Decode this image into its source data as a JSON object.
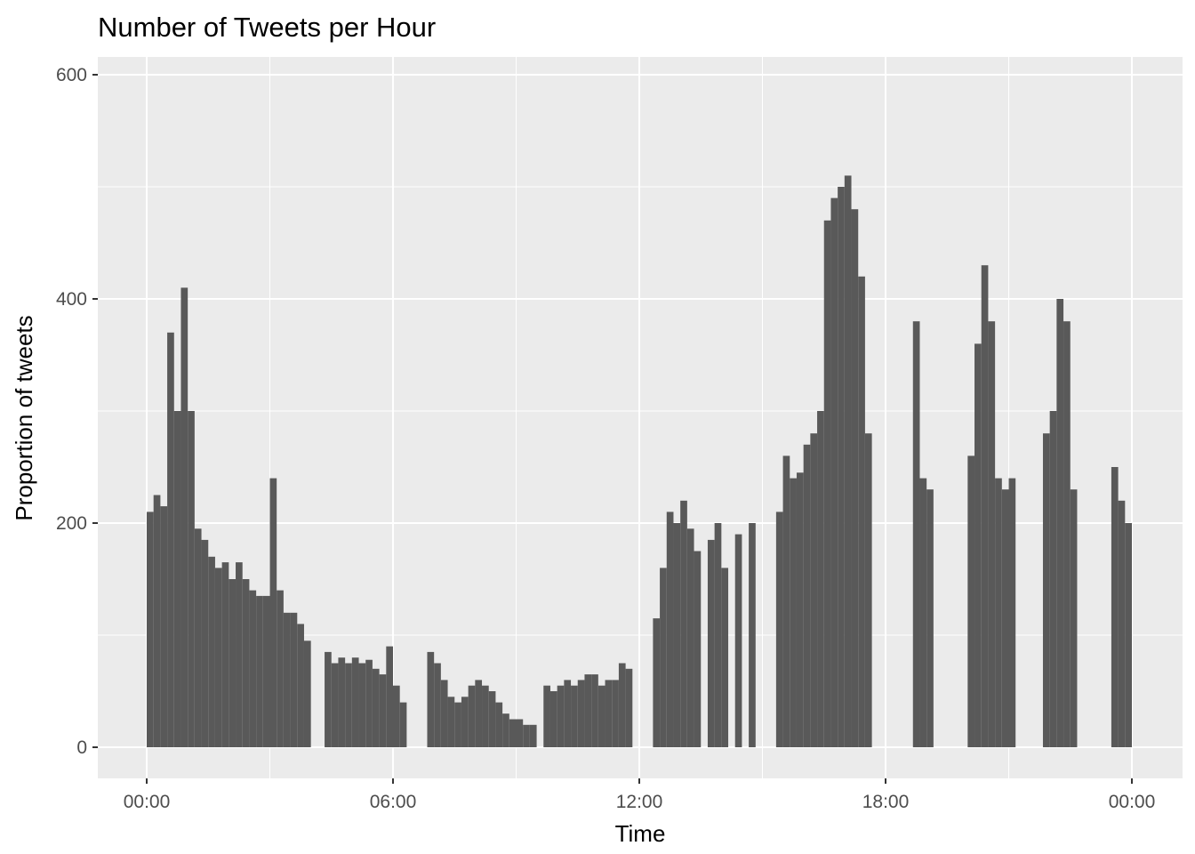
{
  "chart_data": {
    "type": "bar",
    "title": "Number of Tweets per Hour",
    "xlabel": "Time",
    "ylabel": "Proportion of tweets",
    "x_unit": "time of day",
    "xlim": [
      "2024-01-01 00:00",
      "2024-01-02 00:00"
    ],
    "ylim": [
      0,
      600
    ],
    "x_ticks": [
      {
        "value": "00:00",
        "hours": 0
      },
      {
        "value": "06:00",
        "hours": 6
      },
      {
        "value": "12:00",
        "hours": 12
      },
      {
        "value": "18:00",
        "hours": 18
      },
      {
        "value": "00:00",
        "hours": 24
      }
    ],
    "y_ticks": [
      0,
      200,
      400,
      600
    ],
    "grid": true,
    "bar_color": "#595959",
    "panel_color": "#ebebeb",
    "grid_color": "#ffffff",
    "series": [
      {
        "values": [
          {
            "x": "00:00",
            "y": 210
          },
          {
            "x": "00:10",
            "y": 225
          },
          {
            "x": "00:20",
            "y": 215
          },
          {
            "x": "00:30",
            "y": 370
          },
          {
            "x": "00:40",
            "y": 300
          },
          {
            "x": "00:50",
            "y": 410
          },
          {
            "x": "01:00",
            "y": 300
          },
          {
            "x": "01:10",
            "y": 195
          },
          {
            "x": "01:20",
            "y": 185
          },
          {
            "x": "01:30",
            "y": 170
          },
          {
            "x": "01:40",
            "y": 160
          },
          {
            "x": "01:50",
            "y": 165
          },
          {
            "x": "02:00",
            "y": 150
          },
          {
            "x": "02:10",
            "y": 165
          },
          {
            "x": "02:20",
            "y": 150
          },
          {
            "x": "02:30",
            "y": 140
          },
          {
            "x": "02:40",
            "y": 135
          },
          {
            "x": "02:50",
            "y": 135
          },
          {
            "x": "03:00",
            "y": 240
          },
          {
            "x": "03:10",
            "y": 140
          },
          {
            "x": "03:20",
            "y": 120
          },
          {
            "x": "03:30",
            "y": 120
          },
          {
            "x": "03:40",
            "y": 110
          },
          {
            "x": "03:50",
            "y": 95
          },
          {
            "x": "04:20",
            "y": 85
          },
          {
            "x": "04:30",
            "y": 75
          },
          {
            "x": "04:40",
            "y": 80
          },
          {
            "x": "04:50",
            "y": 75
          },
          {
            "x": "05:00",
            "y": 80
          },
          {
            "x": "05:10",
            "y": 75
          },
          {
            "x": "05:20",
            "y": 78
          },
          {
            "x": "05:30",
            "y": 70
          },
          {
            "x": "05:40",
            "y": 65
          },
          {
            "x": "05:50",
            "y": 90
          },
          {
            "x": "06:00",
            "y": 55
          },
          {
            "x": "06:10",
            "y": 40
          },
          {
            "x": "06:50",
            "y": 85
          },
          {
            "x": "07:00",
            "y": 75
          },
          {
            "x": "07:10",
            "y": 60
          },
          {
            "x": "07:20",
            "y": 45
          },
          {
            "x": "07:30",
            "y": 40
          },
          {
            "x": "07:40",
            "y": 45
          },
          {
            "x": "07:50",
            "y": 55
          },
          {
            "x": "08:00",
            "y": 60
          },
          {
            "x": "08:10",
            "y": 55
          },
          {
            "x": "08:20",
            "y": 50
          },
          {
            "x": "08:30",
            "y": 40
          },
          {
            "x": "08:40",
            "y": 30
          },
          {
            "x": "08:50",
            "y": 25
          },
          {
            "x": "09:00",
            "y": 25
          },
          {
            "x": "09:10",
            "y": 20
          },
          {
            "x": "09:20",
            "y": 20
          },
          {
            "x": "09:40",
            "y": 55
          },
          {
            "x": "09:50",
            "y": 50
          },
          {
            "x": "10:00",
            "y": 55
          },
          {
            "x": "10:10",
            "y": 60
          },
          {
            "x": "10:20",
            "y": 55
          },
          {
            "x": "10:30",
            "y": 60
          },
          {
            "x": "10:40",
            "y": 65
          },
          {
            "x": "10:50",
            "y": 65
          },
          {
            "x": "11:00",
            "y": 55
          },
          {
            "x": "11:10",
            "y": 60
          },
          {
            "x": "11:20",
            "y": 60
          },
          {
            "x": "11:30",
            "y": 75
          },
          {
            "x": "11:40",
            "y": 70
          },
          {
            "x": "12:20",
            "y": 115
          },
          {
            "x": "12:30",
            "y": 160
          },
          {
            "x": "12:40",
            "y": 210
          },
          {
            "x": "12:50",
            "y": 200
          },
          {
            "x": "13:00",
            "y": 220
          },
          {
            "x": "13:10",
            "y": 195
          },
          {
            "x": "13:20",
            "y": 175
          },
          {
            "x": "13:40",
            "y": 185
          },
          {
            "x": "13:50",
            "y": 200
          },
          {
            "x": "14:00",
            "y": 160
          },
          {
            "x": "14:20",
            "y": 190
          },
          {
            "x": "14:40",
            "y": 200
          },
          {
            "x": "15:20",
            "y": 210
          },
          {
            "x": "15:30",
            "y": 260
          },
          {
            "x": "15:40",
            "y": 240
          },
          {
            "x": "15:50",
            "y": 245
          },
          {
            "x": "16:00",
            "y": 270
          },
          {
            "x": "16:10",
            "y": 280
          },
          {
            "x": "16:20",
            "y": 300
          },
          {
            "x": "16:30",
            "y": 470
          },
          {
            "x": "16:40",
            "y": 490
          },
          {
            "x": "16:50",
            "y": 500
          },
          {
            "x": "17:00",
            "y": 510
          },
          {
            "x": "17:10",
            "y": 480
          },
          {
            "x": "17:20",
            "y": 420
          },
          {
            "x": "17:30",
            "y": 280
          },
          {
            "x": "18:40",
            "y": 380
          },
          {
            "x": "18:50",
            "y": 240
          },
          {
            "x": "19:00",
            "y": 230
          },
          {
            "x": "20:00",
            "y": 260
          },
          {
            "x": "20:10",
            "y": 360
          },
          {
            "x": "20:20",
            "y": 430
          },
          {
            "x": "20:30",
            "y": 380
          },
          {
            "x": "20:40",
            "y": 240
          },
          {
            "x": "20:50",
            "y": 230
          },
          {
            "x": "21:00",
            "y": 240
          },
          {
            "x": "21:50",
            "y": 280
          },
          {
            "x": "22:00",
            "y": 300
          },
          {
            "x": "22:10",
            "y": 400
          },
          {
            "x": "22:20",
            "y": 380
          },
          {
            "x": "22:30",
            "y": 230
          },
          {
            "x": "23:30",
            "y": 250
          },
          {
            "x": "23:40",
            "y": 220
          },
          {
            "x": "23:50",
            "y": 200
          }
        ]
      }
    ]
  }
}
